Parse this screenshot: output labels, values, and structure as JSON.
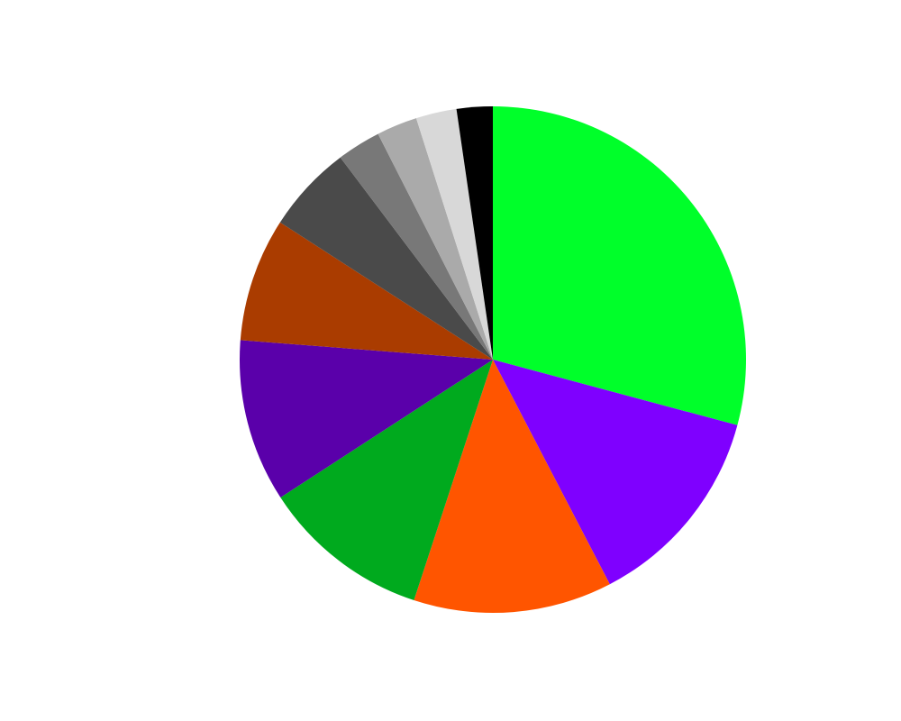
{
  "chart_data": {
    "type": "pie",
    "values": [
      29.2,
      13.2,
      12.7,
      10.8,
      10.4,
      7.9,
      5.6,
      2.8,
      2.6,
      2.6,
      2.3
    ],
    "colors": [
      "#00ff2a",
      "#7f00ff",
      "#ff5500",
      "#00aa1e",
      "#5a00aa",
      "#aa3c00",
      "#4a4a4a",
      "#787878",
      "#aaaaaa",
      "#d8d8d8",
      "#000000"
    ],
    "start_angle": 90,
    "direction": "clockwise"
  }
}
